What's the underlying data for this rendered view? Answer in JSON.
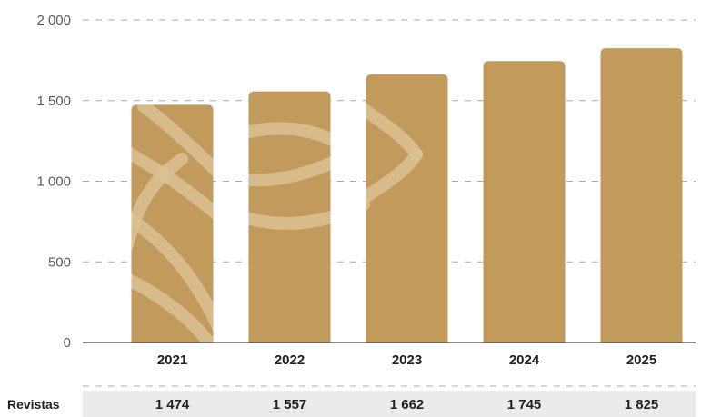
{
  "chart_data": {
    "type": "bar",
    "categories": [
      "2021",
      "2022",
      "2023",
      "2024",
      "2025"
    ],
    "series": [
      {
        "name": "Revistas",
        "values": [
          1474,
          1557,
          1662,
          1745,
          1825
        ]
      }
    ],
    "value_labels": [
      "1 474",
      "1 557",
      "1 662",
      "1 745",
      "1 825"
    ],
    "y_ticks": [
      0,
      500,
      1000,
      1500,
      2000
    ],
    "y_tick_labels": [
      "0",
      "500",
      "1 000",
      "1 500",
      "2 000"
    ],
    "ylim": [
      0,
      2000
    ],
    "grid": true,
    "bar_color": "#c29a5b",
    "pattern_color": "#dcc193",
    "title": "",
    "xlabel": "",
    "ylabel": ""
  }
}
